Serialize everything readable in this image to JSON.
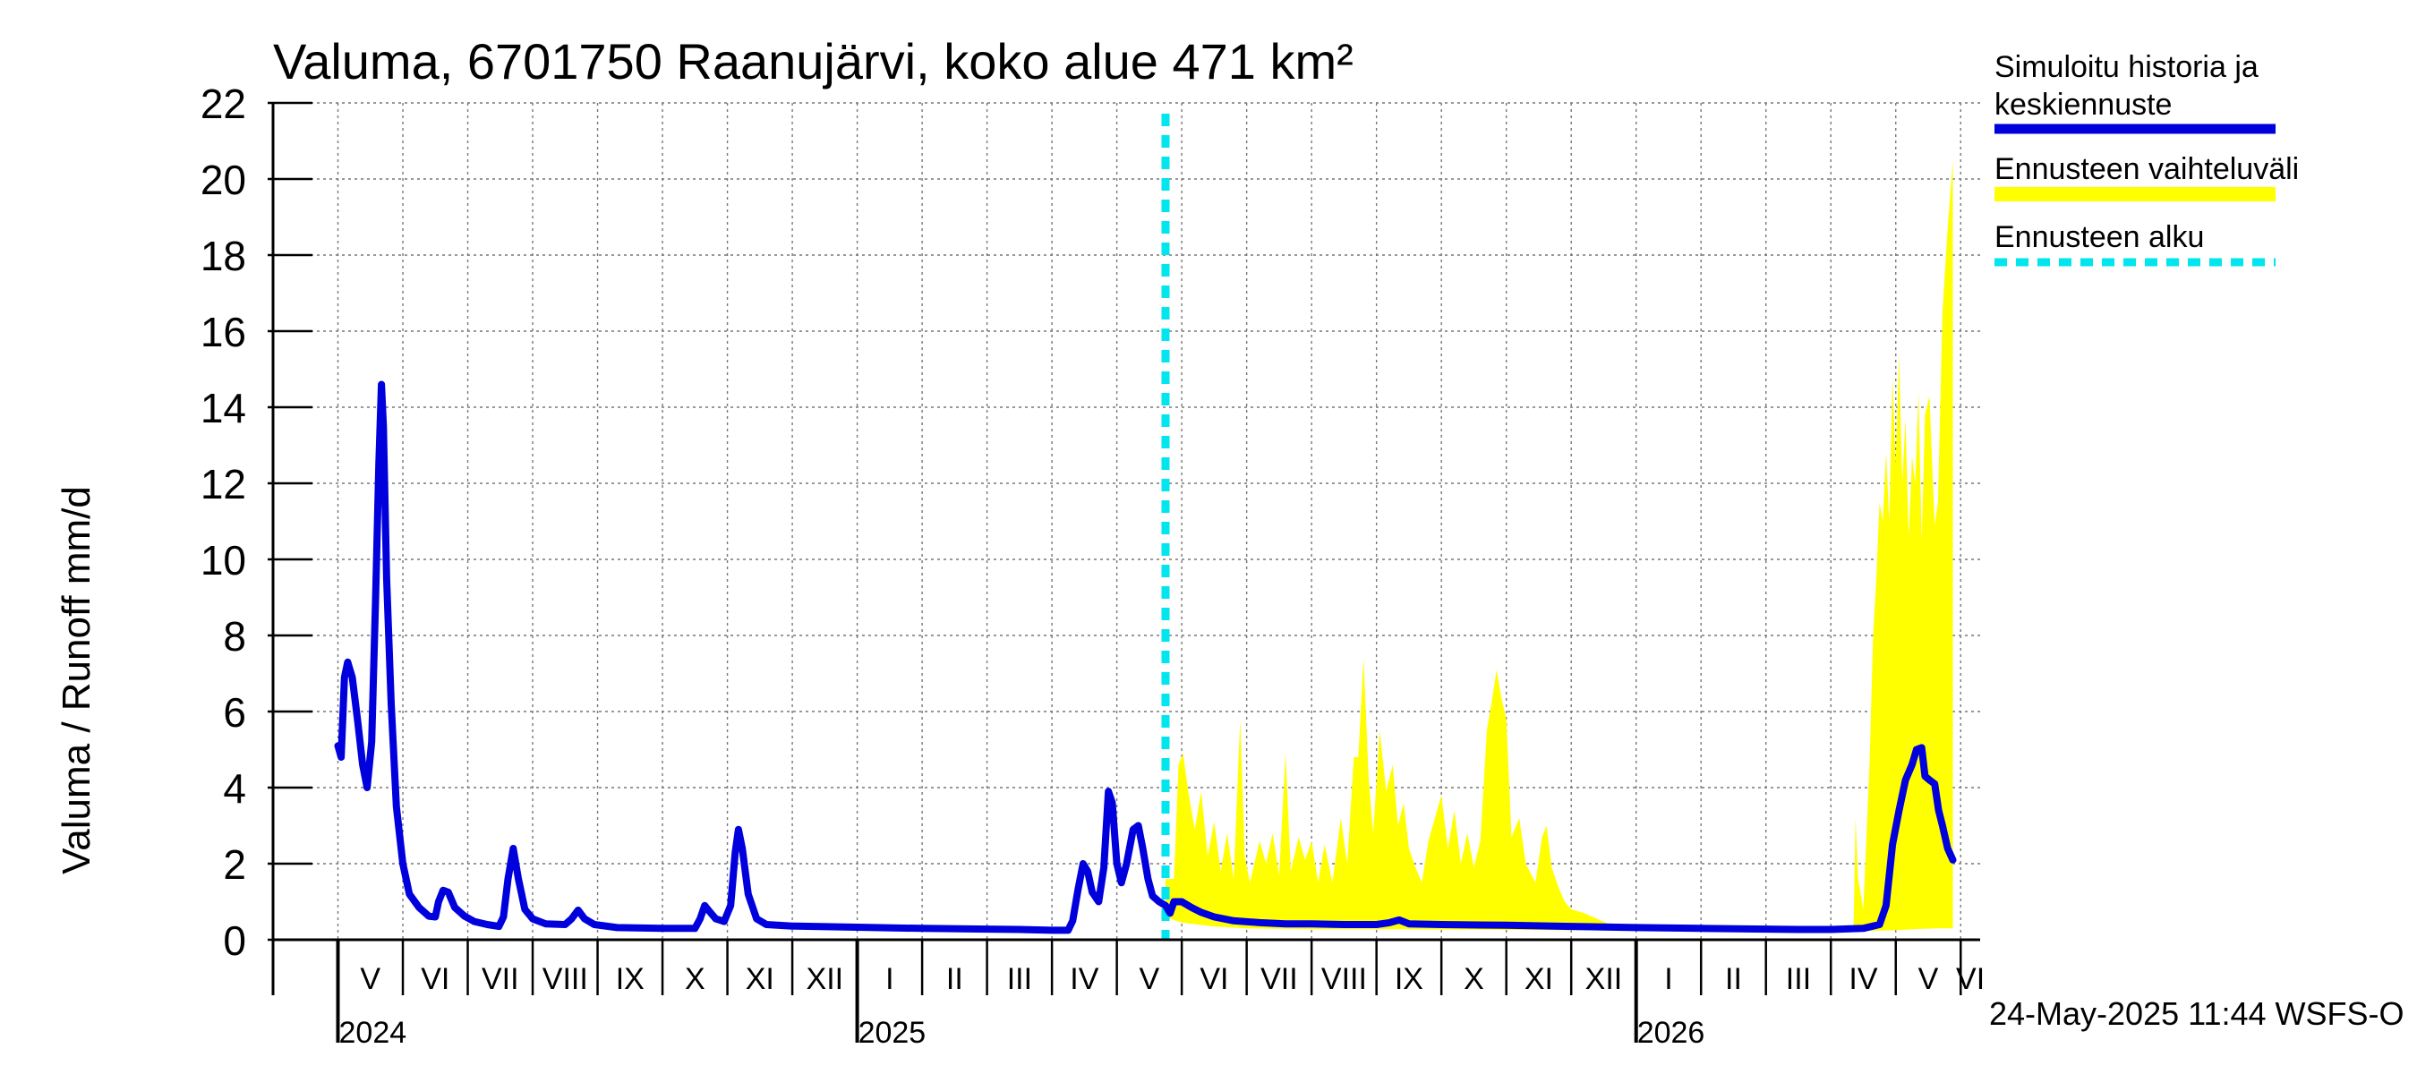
{
  "chart_data": {
    "type": "area",
    "title": "Valuma, 6701750 Raanujärvi, koko alue 471 km²",
    "ylabel": "Valuma / Runoff     mm/d",
    "xlabel": "",
    "ylim": [
      0,
      22
    ],
    "yticks": [
      0,
      2,
      4,
      6,
      8,
      10,
      12,
      14,
      16,
      18,
      20,
      22
    ],
    "grid": true,
    "legend_position": "right",
    "x_unit": "months since 2024-04-01",
    "xlim": [
      0,
      26.3
    ],
    "months": [
      {
        "label": "V",
        "start": 1
      },
      {
        "label": "VI",
        "start": 2
      },
      {
        "label": "VII",
        "start": 3
      },
      {
        "label": "VIII",
        "start": 4
      },
      {
        "label": "IX",
        "start": 5
      },
      {
        "label": "X",
        "start": 6
      },
      {
        "label": "XI",
        "start": 7
      },
      {
        "label": "XII",
        "start": 8
      },
      {
        "label": "I",
        "start": 9
      },
      {
        "label": "II",
        "start": 10
      },
      {
        "label": "III",
        "start": 11
      },
      {
        "label": "IV",
        "start": 12
      },
      {
        "label": "V",
        "start": 13
      },
      {
        "label": "VI",
        "start": 14
      },
      {
        "label": "VII",
        "start": 15
      },
      {
        "label": "VIII",
        "start": 16
      },
      {
        "label": "IX",
        "start": 17
      },
      {
        "label": "X",
        "start": 18
      },
      {
        "label": "XI",
        "start": 19
      },
      {
        "label": "XII",
        "start": 20
      },
      {
        "label": "I",
        "start": 21
      },
      {
        "label": "II",
        "start": 22
      },
      {
        "label": "III",
        "start": 23
      },
      {
        "label": "IV",
        "start": 24
      },
      {
        "label": "V",
        "start": 25
      },
      {
        "label": "VI",
        "start": 26
      }
    ],
    "years": [
      {
        "label": "2024",
        "at": 1
      },
      {
        "label": "2025",
        "at": 9
      },
      {
        "label": "2026",
        "at": 21
      }
    ],
    "forecast_start": 13.75,
    "series": [
      {
        "name": "Simuloitu historia ja keskiennuste",
        "color": "#0000dd",
        "points": [
          [
            1.0,
            5.1
          ],
          [
            1.05,
            4.8
          ],
          [
            1.1,
            6.9
          ],
          [
            1.15,
            7.3
          ],
          [
            1.22,
            6.9
          ],
          [
            1.3,
            5.8
          ],
          [
            1.38,
            4.6
          ],
          [
            1.45,
            4.0
          ],
          [
            1.52,
            5.2
          ],
          [
            1.58,
            9.0
          ],
          [
            1.63,
            12.5
          ],
          [
            1.67,
            14.6
          ],
          [
            1.7,
            13.5
          ],
          [
            1.75,
            9.5
          ],
          [
            1.82,
            6.2
          ],
          [
            1.9,
            3.5
          ],
          [
            2.0,
            2.0
          ],
          [
            2.1,
            1.2
          ],
          [
            2.25,
            0.85
          ],
          [
            2.4,
            0.62
          ],
          [
            2.5,
            0.6
          ],
          [
            2.55,
            1.0
          ],
          [
            2.62,
            1.3
          ],
          [
            2.7,
            1.25
          ],
          [
            2.8,
            0.85
          ],
          [
            2.95,
            0.62
          ],
          [
            3.1,
            0.48
          ],
          [
            3.3,
            0.4
          ],
          [
            3.48,
            0.35
          ],
          [
            3.55,
            0.6
          ],
          [
            3.62,
            1.6
          ],
          [
            3.7,
            2.4
          ],
          [
            3.78,
            1.6
          ],
          [
            3.88,
            0.8
          ],
          [
            4.0,
            0.55
          ],
          [
            4.2,
            0.42
          ],
          [
            4.5,
            0.4
          ],
          [
            4.6,
            0.55
          ],
          [
            4.7,
            0.78
          ],
          [
            4.8,
            0.55
          ],
          [
            4.95,
            0.4
          ],
          [
            5.3,
            0.32
          ],
          [
            6.0,
            0.3
          ],
          [
            6.5,
            0.3
          ],
          [
            6.58,
            0.55
          ],
          [
            6.65,
            0.9
          ],
          [
            6.72,
            0.75
          ],
          [
            6.82,
            0.55
          ],
          [
            6.95,
            0.48
          ],
          [
            7.05,
            0.9
          ],
          [
            7.12,
            2.3
          ],
          [
            7.17,
            2.9
          ],
          [
            7.23,
            2.4
          ],
          [
            7.32,
            1.2
          ],
          [
            7.45,
            0.55
          ],
          [
            7.6,
            0.4
          ],
          [
            8.0,
            0.36
          ],
          [
            9.0,
            0.33
          ],
          [
            10.0,
            0.3
          ],
          [
            11.0,
            0.28
          ],
          [
            11.5,
            0.27
          ],
          [
            12.0,
            0.25
          ],
          [
            12.25,
            0.25
          ],
          [
            12.32,
            0.5
          ],
          [
            12.4,
            1.3
          ],
          [
            12.48,
            2.0
          ],
          [
            12.55,
            1.8
          ],
          [
            12.62,
            1.25
          ],
          [
            12.72,
            1.0
          ],
          [
            12.8,
            1.9
          ],
          [
            12.87,
            3.9
          ],
          [
            12.93,
            3.6
          ],
          [
            13.0,
            2.0
          ],
          [
            13.07,
            1.5
          ],
          [
            13.15,
            2.0
          ],
          [
            13.25,
            2.9
          ],
          [
            13.33,
            3.0
          ],
          [
            13.4,
            2.4
          ],
          [
            13.48,
            1.6
          ],
          [
            13.55,
            1.15
          ],
          [
            13.65,
            1.0
          ],
          [
            13.75,
            0.9
          ],
          [
            13.82,
            0.7
          ],
          [
            13.88,
            1.0
          ],
          [
            14.0,
            1.0
          ],
          [
            14.15,
            0.85
          ],
          [
            14.3,
            0.72
          ],
          [
            14.5,
            0.6
          ],
          [
            14.8,
            0.5
          ],
          [
            15.2,
            0.45
          ],
          [
            15.6,
            0.42
          ],
          [
            16.0,
            0.42
          ],
          [
            16.5,
            0.4
          ],
          [
            17.0,
            0.4
          ],
          [
            17.2,
            0.45
          ],
          [
            17.35,
            0.52
          ],
          [
            17.5,
            0.42
          ],
          [
            18.0,
            0.4
          ],
          [
            19.0,
            0.38
          ],
          [
            20.0,
            0.35
          ],
          [
            21.0,
            0.32
          ],
          [
            22.0,
            0.3
          ],
          [
            23.0,
            0.28
          ],
          [
            23.5,
            0.27
          ],
          [
            24.0,
            0.27
          ],
          [
            24.5,
            0.3
          ],
          [
            24.75,
            0.4
          ],
          [
            24.85,
            0.9
          ],
          [
            24.95,
            2.5
          ],
          [
            25.05,
            3.4
          ],
          [
            25.15,
            4.2
          ],
          [
            25.25,
            4.6
          ],
          [
            25.32,
            5.0
          ],
          [
            25.4,
            5.05
          ],
          [
            25.45,
            4.3
          ],
          [
            25.52,
            4.2
          ],
          [
            25.6,
            4.1
          ],
          [
            25.66,
            3.4
          ],
          [
            25.72,
            3.0
          ],
          [
            25.8,
            2.4
          ],
          [
            25.88,
            2.1
          ]
        ]
      },
      {
        "name": "Ennusteen vaihteluväli",
        "color": "#ffff00",
        "upper": [
          [
            13.75,
            1.6
          ],
          [
            13.88,
            1.6
          ],
          [
            13.95,
            4.6
          ],
          [
            14.02,
            4.9
          ],
          [
            14.1,
            3.9
          ],
          [
            14.2,
            2.9
          ],
          [
            14.3,
            3.9
          ],
          [
            14.4,
            2.2
          ],
          [
            14.5,
            3.1
          ],
          [
            14.6,
            1.8
          ],
          [
            14.7,
            2.8
          ],
          [
            14.8,
            1.6
          ],
          [
            14.9,
            5.8
          ],
          [
            14.97,
            2.2
          ],
          [
            15.05,
            1.5
          ],
          [
            15.2,
            2.6
          ],
          [
            15.3,
            2.0
          ],
          [
            15.4,
            2.8
          ],
          [
            15.5,
            1.7
          ],
          [
            15.6,
            4.9
          ],
          [
            15.68,
            1.8
          ],
          [
            15.8,
            2.7
          ],
          [
            15.9,
            2.1
          ],
          [
            16.0,
            2.6
          ],
          [
            16.1,
            1.5
          ],
          [
            16.2,
            2.5
          ],
          [
            16.32,
            1.5
          ],
          [
            16.45,
            3.2
          ],
          [
            16.55,
            2.0
          ],
          [
            16.65,
            4.8
          ],
          [
            16.72,
            4.8
          ],
          [
            16.8,
            7.4
          ],
          [
            16.88,
            4.2
          ],
          [
            16.95,
            2.8
          ],
          [
            17.05,
            5.5
          ],
          [
            17.15,
            3.9
          ],
          [
            17.25,
            4.6
          ],
          [
            17.33,
            3.0
          ],
          [
            17.42,
            3.6
          ],
          [
            17.5,
            2.4
          ],
          [
            17.6,
            1.9
          ],
          [
            17.7,
            1.5
          ],
          [
            17.8,
            2.6
          ],
          [
            17.9,
            3.2
          ],
          [
            18.0,
            3.8
          ],
          [
            18.1,
            2.4
          ],
          [
            18.2,
            3.4
          ],
          [
            18.3,
            2.0
          ],
          [
            18.4,
            2.8
          ],
          [
            18.5,
            1.9
          ],
          [
            18.6,
            2.6
          ],
          [
            18.7,
            5.5
          ],
          [
            18.78,
            6.3
          ],
          [
            18.85,
            7.1
          ],
          [
            18.92,
            6.4
          ],
          [
            19.0,
            5.8
          ],
          [
            19.08,
            2.7
          ],
          [
            19.2,
            3.2
          ],
          [
            19.3,
            2.0
          ],
          [
            19.45,
            1.5
          ],
          [
            19.55,
            2.7
          ],
          [
            19.62,
            3.0
          ],
          [
            19.7,
            1.9
          ],
          [
            19.8,
            1.4
          ],
          [
            19.9,
            1.0
          ],
          [
            20.0,
            0.8
          ],
          [
            20.2,
            0.7
          ],
          [
            20.4,
            0.55
          ],
          [
            20.6,
            0.4
          ],
          [
            21.0,
            0.35
          ],
          [
            22.0,
            0.32
          ],
          [
            23.0,
            0.3
          ],
          [
            24.0,
            0.3
          ],
          [
            24.35,
            0.35
          ],
          [
            24.38,
            3.2
          ],
          [
            24.42,
            1.6
          ],
          [
            24.5,
            0.8
          ],
          [
            24.6,
            4.8
          ],
          [
            24.65,
            8.0
          ],
          [
            24.7,
            9.5
          ],
          [
            24.75,
            11.5
          ],
          [
            24.8,
            11.0
          ],
          [
            24.85,
            12.8
          ],
          [
            24.9,
            11.0
          ],
          [
            24.95,
            14.8
          ],
          [
            25.0,
            12.5
          ],
          [
            25.05,
            15.4
          ],
          [
            25.1,
            12.0
          ],
          [
            25.15,
            13.7
          ],
          [
            25.2,
            10.6
          ],
          [
            25.25,
            12.7
          ],
          [
            25.3,
            12.0
          ],
          [
            25.35,
            14.4
          ],
          [
            25.4,
            10.5
          ],
          [
            25.45,
            13.8
          ],
          [
            25.52,
            14.3
          ],
          [
            25.6,
            10.9
          ],
          [
            25.65,
            11.5
          ],
          [
            25.72,
            16.5
          ],
          [
            25.8,
            18.7
          ],
          [
            25.88,
            20.5
          ]
        ],
        "lower": [
          [
            13.75,
            0.6
          ],
          [
            14.0,
            0.45
          ],
          [
            14.5,
            0.35
          ],
          [
            15.0,
            0.3
          ],
          [
            16.0,
            0.28
          ],
          [
            17.0,
            0.28
          ],
          [
            18.0,
            0.27
          ],
          [
            19.0,
            0.26
          ],
          [
            20.0,
            0.25
          ],
          [
            21.0,
            0.24
          ],
          [
            22.0,
            0.23
          ],
          [
            23.0,
            0.23
          ],
          [
            24.0,
            0.23
          ],
          [
            24.5,
            0.23
          ],
          [
            25.0,
            0.25
          ],
          [
            25.3,
            0.28
          ],
          [
            25.6,
            0.3
          ],
          [
            25.88,
            0.3
          ]
        ]
      },
      {
        "name": "Ennusteen alku",
        "color": "#00e5ee",
        "style": "dashed"
      }
    ]
  },
  "legend": {
    "items": [
      {
        "line1": "Simuloitu historia ja",
        "line2": "keskiennuste",
        "color": "#0000dd",
        "style": "solid"
      },
      {
        "line1": "Ennusteen vaihteluväli",
        "line2": "",
        "color": "#ffff00",
        "style": "solid"
      },
      {
        "line1": "Ennusteen alku",
        "line2": "",
        "color": "#00e5ee",
        "style": "dashed"
      }
    ]
  },
  "footer": {
    "timestamp": "24-May-2025 11:44 WSFS-O"
  }
}
